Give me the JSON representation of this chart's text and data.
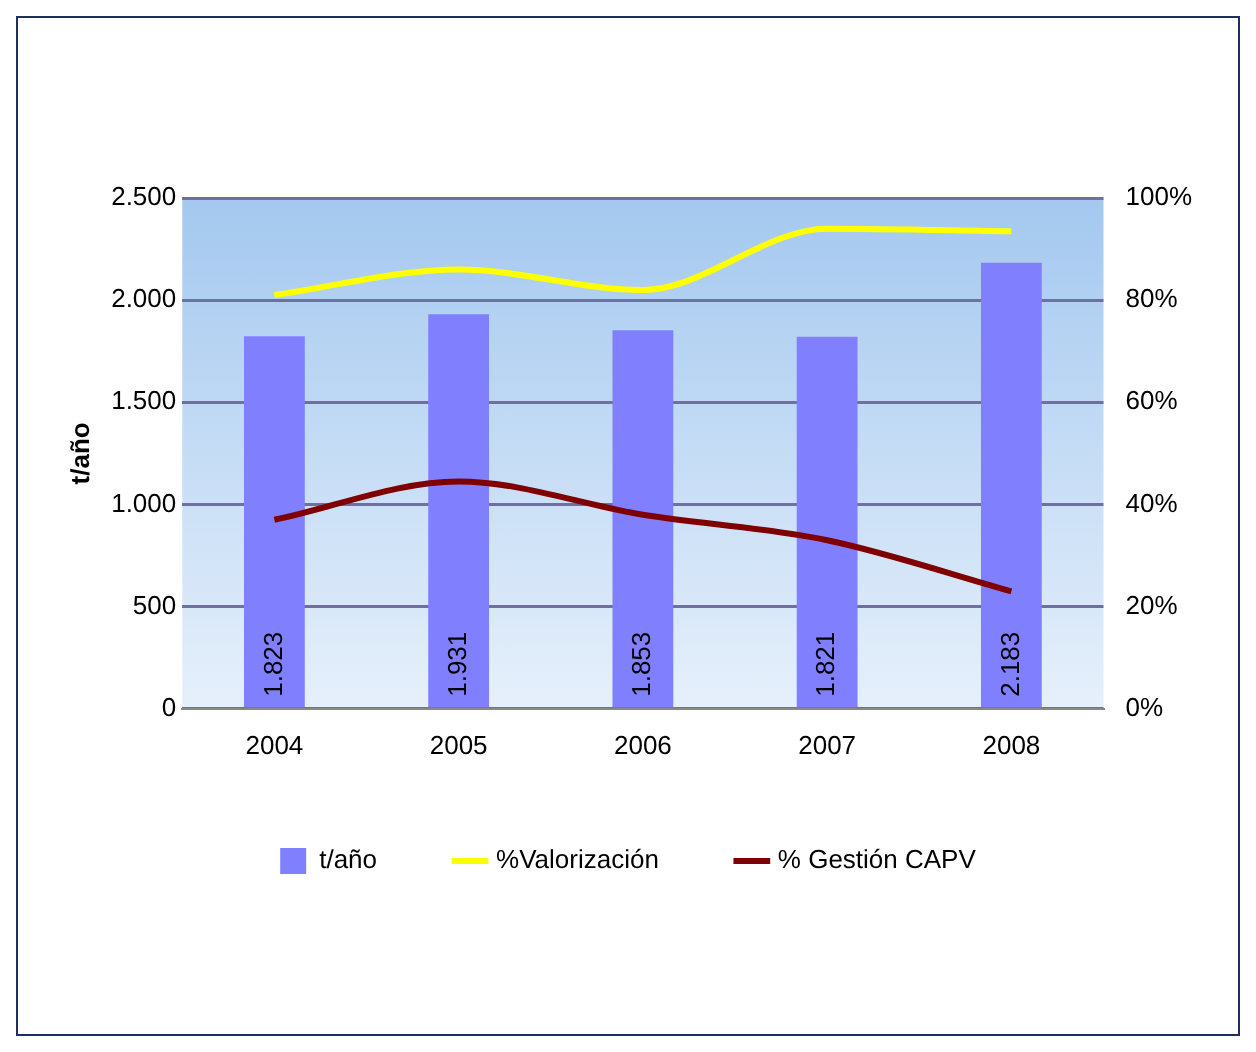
{
  "chart_data": {
    "type": "bar",
    "categories": [
      "2004",
      "2005",
      "2006",
      "2007",
      "2008"
    ],
    "ylabel": "t/año",
    "series": [
      {
        "name": "t/año",
        "color": "#8080ff",
        "values": [
          1823,
          1931,
          1853,
          1821,
          2183
        ],
        "value_labels": [
          "1.823",
          "1.931",
          "1.853",
          "1.821",
          "2.183"
        ]
      },
      {
        "name": "%Valorización",
        "type": "line",
        "axis": "y2",
        "color": "#ffff00",
        "values": [
          81,
          86,
          82,
          94,
          93.5
        ]
      },
      {
        "name": "% Gestión CAPV",
        "type": "line",
        "axis": "y2",
        "color": "#800000",
        "values": [
          37,
          44.5,
          38,
          33,
          23
        ]
      }
    ],
    "ylim": [
      0,
      2500
    ],
    "yticks": [
      {
        "value": 0,
        "label": "0"
      },
      {
        "value": 500,
        "label": "500"
      },
      {
        "value": 1000,
        "label": "1.000"
      },
      {
        "value": 1500,
        "label": "1.500"
      },
      {
        "value": 2000,
        "label": "2.000"
      },
      {
        "value": 2500,
        "label": "2.500"
      }
    ],
    "y2lim": [
      0,
      100
    ],
    "y2ticks": [
      {
        "value": 0,
        "label": "0%"
      },
      {
        "value": 20,
        "label": "20%"
      },
      {
        "value": 40,
        "label": "40%"
      },
      {
        "value": 60,
        "label": "60%"
      },
      {
        "value": 80,
        "label": "80%"
      },
      {
        "value": 100,
        "label": "100%"
      }
    ],
    "grid": "y",
    "legend": "bottom",
    "marker": "none"
  }
}
